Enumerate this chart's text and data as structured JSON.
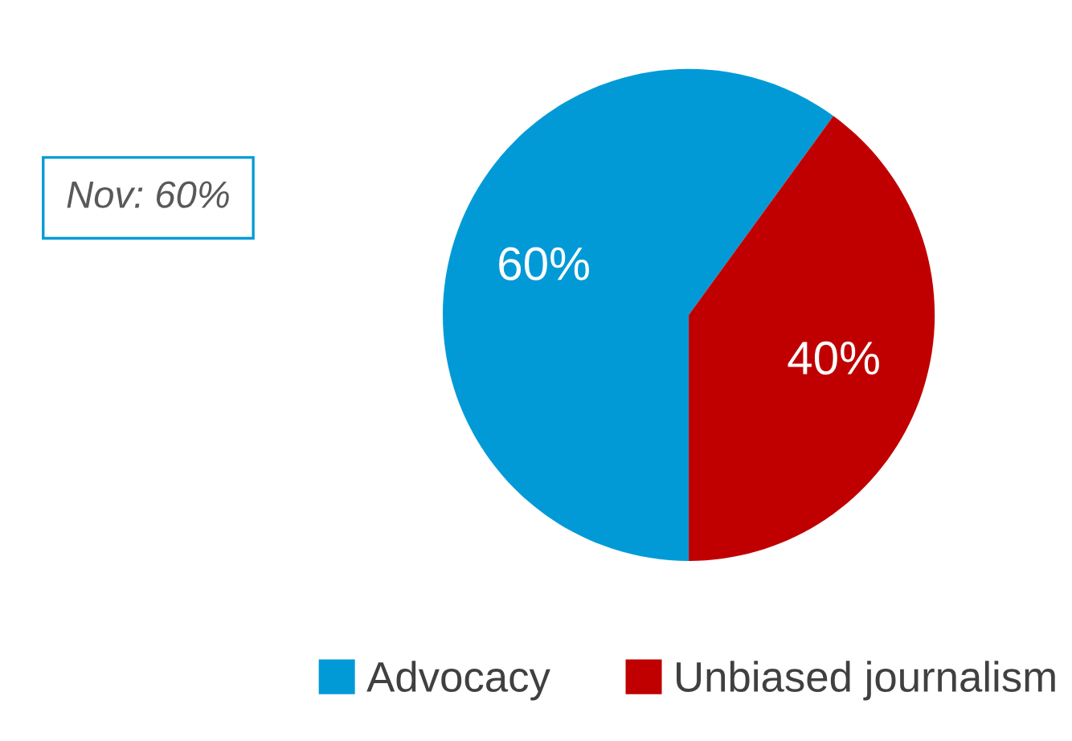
{
  "chart_data": {
    "type": "pie",
    "categories": [
      "Advocacy",
      "Unbiased journalism"
    ],
    "values": [
      60,
      40
    ],
    "colors": [
      "#029ad6",
      "#c00000"
    ],
    "value_labels": [
      "60%",
      "40%"
    ],
    "annotations": [
      "Nov: 60%"
    ],
    "legend": "bottom"
  }
}
